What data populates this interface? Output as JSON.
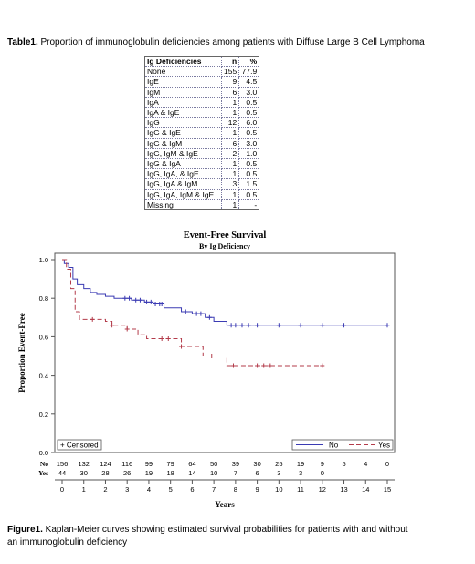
{
  "table": {
    "caption_bold": "Table1.",
    "caption_text": " Proportion of immunoglobulin deficiencies among patients with Diffuse Large B Cell Lymphoma",
    "headers": [
      "Ig Deficiencies",
      "n",
      "%"
    ],
    "rows": [
      [
        "None",
        "155",
        "77.9"
      ],
      [
        "IgE",
        "9",
        "4.5"
      ],
      [
        "IgM",
        "6",
        "3.0"
      ],
      [
        "IgA",
        "1",
        "0.5"
      ],
      [
        "IgA & IgE",
        "1",
        "0.5"
      ],
      [
        "IgG",
        "12",
        "6.0"
      ],
      [
        "IgG & IgE",
        "1",
        "0.5"
      ],
      [
        "IgG & IgM",
        "6",
        "3.0"
      ],
      [
        "IgG, IgM & IgE",
        "2",
        "1.0"
      ],
      [
        "IgG & IgA",
        "1",
        "0.5"
      ],
      [
        "IgG, IgA, & IgE",
        "1",
        "0.5"
      ],
      [
        "IgG, IgA & IgM",
        "3",
        "1.5"
      ],
      [
        "IgG, IgA, IgM & IgE",
        "1",
        "0.5"
      ],
      [
        "Missing",
        "1",
        "-"
      ]
    ]
  },
  "figure": {
    "caption_bold": "Figure1.",
    "caption_text": " Kaplan-Meier curves showing estimated survival probabilities for patients with and without an immunoglobulin deficiency"
  },
  "chart_data": {
    "type": "line",
    "title": "Event-Free Survival",
    "subtitle": "By Ig Deficiency",
    "xlabel": "Years",
    "ylabel": "Proportion Event-Free",
    "xlim": [
      0,
      15
    ],
    "ylim": [
      0,
      1
    ],
    "xticks": [
      "0",
      "1",
      "2",
      "3",
      "4",
      "5",
      "6",
      "7",
      "8",
      "9",
      "10",
      "11",
      "12",
      "13",
      "14",
      "15"
    ],
    "yticks": [
      "0.0",
      "0.2",
      "0.4",
      "0.6",
      "0.8",
      "1.0"
    ],
    "grid": false,
    "censored_legend": "+ Censored",
    "colors": {
      "No": "#3b3bb3",
      "Yes": "#b33b4a"
    },
    "series": [
      {
        "name": "No",
        "step_points": [
          [
            0,
            1.0
          ],
          [
            0.1,
            0.98
          ],
          [
            0.3,
            0.96
          ],
          [
            0.5,
            0.9
          ],
          [
            0.7,
            0.87
          ],
          [
            1.0,
            0.85
          ],
          [
            1.3,
            0.83
          ],
          [
            1.6,
            0.82
          ],
          [
            2.0,
            0.81
          ],
          [
            2.4,
            0.8
          ],
          [
            3.2,
            0.79
          ],
          [
            3.8,
            0.78
          ],
          [
            4.2,
            0.77
          ],
          [
            4.7,
            0.75
          ],
          [
            5.5,
            0.73
          ],
          [
            6.0,
            0.72
          ],
          [
            6.6,
            0.7
          ],
          [
            7.0,
            0.68
          ],
          [
            7.6,
            0.66
          ],
          [
            15.0,
            0.66
          ]
        ],
        "censored_x": [
          2.9,
          3.1,
          3.4,
          3.6,
          3.9,
          4.1,
          4.3,
          4.5,
          4.6,
          5.7,
          6.2,
          6.4,
          6.8,
          7.8,
          8.0,
          8.3,
          8.6,
          9.0,
          10.0,
          11.0,
          12.0,
          13.0,
          15.0
        ]
      },
      {
        "name": "Yes",
        "step_points": [
          [
            0,
            1.0
          ],
          [
            0.2,
            0.95
          ],
          [
            0.4,
            0.85
          ],
          [
            0.6,
            0.73
          ],
          [
            0.8,
            0.69
          ],
          [
            2.0,
            0.68
          ],
          [
            2.3,
            0.66
          ],
          [
            3.0,
            0.64
          ],
          [
            3.5,
            0.61
          ],
          [
            3.9,
            0.59
          ],
          [
            5.5,
            0.55
          ],
          [
            6.5,
            0.5
          ],
          [
            7.2,
            0.5
          ],
          [
            7.6,
            0.45
          ],
          [
            12.0,
            0.45
          ]
        ],
        "censored_x": [
          1.4,
          2.3,
          3.0,
          4.6,
          4.9,
          5.5,
          6.9,
          7.9,
          9.0,
          9.3,
          9.6,
          12.0
        ]
      }
    ],
    "at_risk": {
      "labels": [
        "No",
        "Yes"
      ],
      "No": [
        "156",
        "132",
        "124",
        "116",
        "99",
        "79",
        "64",
        "50",
        "39",
        "30",
        "25",
        "19",
        "9",
        "5",
        "4",
        "0"
      ],
      "Yes": [
        "44",
        "30",
        "28",
        "26",
        "19",
        "18",
        "14",
        "10",
        "7",
        "6",
        "3",
        "3",
        "0",
        "",
        "",
        ""
      ]
    }
  }
}
